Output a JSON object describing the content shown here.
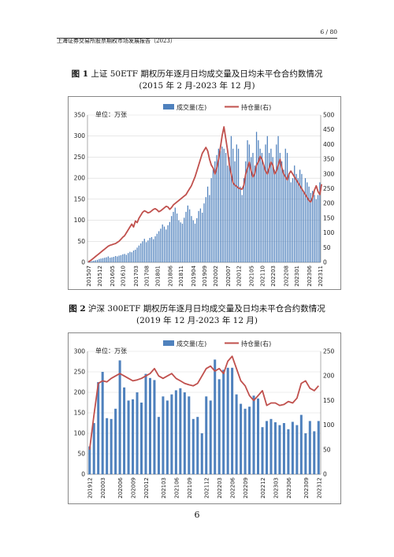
{
  "page": {
    "number_label": "6 / 80",
    "header_title": "上海证券交易所股票期权市场发展报告（2023）",
    "footer_page": "6"
  },
  "figure1": {
    "title_bold": "图 1",
    "title_text": " 上证 50ETF 期权历年逐月日均成交量及日均未平仓合约数情况",
    "subtitle": "(2015 年 2 月-2023 年 12 月)"
  },
  "figure2": {
    "title_bold": "图 2",
    "title_text": " 沪深 300ETF 期权历年逐月日均成交量及日均未平仓合约数情况",
    "subtitle": "(2019 年 12 月-2023 年 12 月)"
  },
  "colors": {
    "bar": "#4f81bd",
    "line": "#c0504d",
    "grid": "#d9d9d9"
  },
  "chart_data": [
    {
      "type": "bar",
      "unit_label": "单位：万张",
      "series": [
        {
          "name": "成交量(左)",
          "type": "bar",
          "axis": "left",
          "values": [
            1,
            2,
            3,
            4,
            5,
            6,
            8,
            9,
            10,
            11,
            12,
            14,
            11,
            12,
            13,
            15,
            14,
            16,
            17,
            19,
            20,
            18,
            22,
            25,
            24,
            28,
            30,
            35,
            40,
            45,
            50,
            56,
            48,
            52,
            58,
            60,
            55,
            62,
            68,
            74,
            80,
            90,
            85,
            78,
            88,
            96,
            110,
            120,
            130,
            116,
            100,
            95,
            92,
            106,
            120,
            135,
            126,
            110,
            100,
            92,
            105,
            122,
            128,
            118,
            140,
            155,
            180,
            160,
            200,
            220,
            240,
            255,
            270,
            265,
            275,
            270,
            260,
            230,
            250,
            300,
            270,
            240,
            280,
            270,
            180,
            160,
            200,
            240,
            290,
            280,
            250,
            260,
            230,
            310,
            290,
            270,
            260,
            230,
            280,
            300,
            260,
            270,
            250,
            220,
            280,
            300,
            260,
            240,
            220,
            270,
            260,
            210,
            190,
            200,
            230,
            210,
            200,
            220,
            210,
            170,
            200,
            190,
            180,
            165,
            170,
            160,
            150,
            160,
            190
          ]
        },
        {
          "name": "持仓量(右)",
          "type": "line",
          "axis": "right",
          "values": [
            2,
            5,
            10,
            15,
            20,
            25,
            30,
            35,
            40,
            45,
            50,
            55,
            58,
            60,
            62,
            64,
            68,
            72,
            78,
            85,
            90,
            100,
            110,
            120,
            130,
            120,
            140,
            135,
            150,
            160,
            170,
            175,
            172,
            168,
            170,
            175,
            180,
            182,
            178,
            172,
            175,
            180,
            185,
            190,
            188,
            180,
            186,
            195,
            200,
            205,
            210,
            215,
            220,
            225,
            230,
            240,
            250,
            260,
            275,
            290,
            310,
            330,
            350,
            370,
            380,
            390,
            378,
            350,
            330,
            320,
            300,
            320,
            350,
            390,
            430,
            460,
            420,
            380,
            330,
            300,
            270,
            262,
            258,
            252,
            250,
            248,
            262,
            300,
            320,
            340,
            310,
            290,
            300,
            330,
            340,
            360,
            350,
            330,
            310,
            300,
            320,
            340,
            330,
            300,
            310,
            330,
            350,
            320,
            300,
            290,
            280,
            300,
            310,
            300,
            290,
            280,
            270,
            260,
            250,
            240,
            230,
            220,
            210,
            205,
            220,
            245,
            260,
            240,
            230,
            265
          ]
        }
      ],
      "x_tick_labels": [
        "201507",
        "201512",
        "201605",
        "201610",
        "201703",
        "201708",
        "201801",
        "201806",
        "201811",
        "201904",
        "201909",
        "202002",
        "202007",
        "202012",
        "202105",
        "202110",
        "202203",
        "202208",
        "202301",
        "202306",
        "202311"
      ],
      "yleft_ticks": [
        0,
        50,
        100,
        150,
        200,
        250,
        300,
        350
      ],
      "yright_ticks": [
        0,
        50,
        100,
        150,
        200,
        250,
        300,
        350,
        400,
        450,
        500
      ],
      "yleft_lim": [
        0,
        350
      ],
      "yright_lim": [
        0,
        500
      ],
      "legend_position": "top"
    },
    {
      "type": "bar",
      "unit_label": "单位：万张",
      "series": [
        {
          "name": "成交量(左)",
          "type": "bar",
          "axis": "left",
          "values": [
            68,
            125,
            225,
            250,
            137,
            135,
            160,
            278,
            212,
            180,
            183,
            200,
            175,
            245,
            235,
            230,
            140,
            190,
            180,
            195,
            205,
            210,
            200,
            190,
            135,
            140,
            100,
            190,
            180,
            280,
            232,
            255,
            260,
            260,
            195,
            172,
            160,
            165,
            192,
            185,
            115,
            130,
            135,
            127,
            120,
            125,
            110,
            128,
            120,
            145,
            100,
            130,
            105,
            130
          ]
        },
        {
          "name": "持仓量(右)",
          "type": "line",
          "axis": "right",
          "values": [
            50,
            120,
            185,
            190,
            188,
            195,
            200,
            205,
            200,
            195,
            190,
            192,
            195,
            200,
            205,
            215,
            200,
            195,
            200,
            205,
            195,
            190,
            185,
            182,
            180,
            185,
            200,
            215,
            220,
            210,
            215,
            205,
            230,
            240,
            215,
            190,
            180,
            160,
            150,
            160,
            170,
            140,
            145,
            145,
            140,
            142,
            148,
            145,
            155,
            185,
            190,
            175,
            170,
            180
          ]
        }
      ],
      "x_tick_labels": [
        "201912",
        "202003",
        "202006",
        "202009",
        "202012",
        "202103",
        "202106",
        "202109",
        "202112",
        "202203",
        "202206",
        "202209",
        "202212",
        "202303",
        "202306",
        "202309",
        "202312"
      ],
      "yleft_ticks": [
        0,
        50,
        100,
        150,
        200,
        250,
        300
      ],
      "yright_ticks": [
        0,
        50,
        100,
        150,
        200,
        250
      ],
      "yleft_lim": [
        0,
        300
      ],
      "yright_lim": [
        0,
        250
      ],
      "legend_position": "top"
    }
  ]
}
